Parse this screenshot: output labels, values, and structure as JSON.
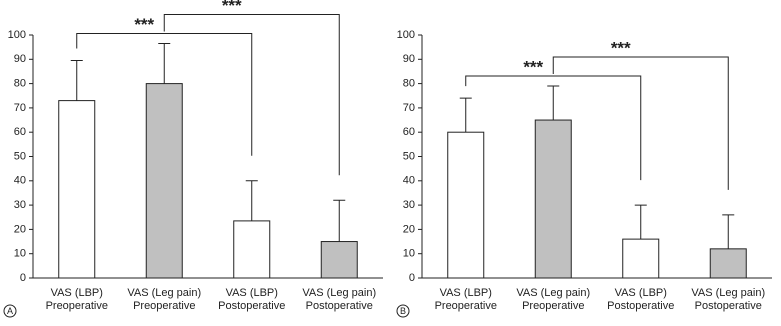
{
  "chart_data": [
    {
      "type": "bar",
      "panel": "A",
      "categories": [
        [
          "VAS (LBP)",
          "Preoperative"
        ],
        [
          "VAS (Leg pain)",
          "Preoperative"
        ],
        [
          "VAS (LBP)",
          "Postoperative"
        ],
        [
          "VAS (Leg pain)",
          "Postoperative"
        ]
      ],
      "values": [
        73,
        80,
        23.5,
        15
      ],
      "errors": [
        16.5,
        16.5,
        16.5,
        17
      ],
      "colors": [
        "#ffffff",
        "#c0c0c0",
        "#ffffff",
        "#c0c0c0"
      ],
      "ylim": [
        0,
        100
      ],
      "yticks": [
        0,
        10,
        20,
        30,
        40,
        50,
        60,
        70,
        80,
        90,
        100
      ],
      "brackets": [
        {
          "label": "***",
          "categories": [
            0,
            2
          ]
        },
        {
          "label": "***",
          "categories": [
            1,
            3
          ]
        }
      ]
    },
    {
      "type": "bar",
      "panel": "B",
      "categories": [
        [
          "VAS (LBP)",
          "Preoperative"
        ],
        [
          "VAS (Leg pain)",
          "Preoperative"
        ],
        [
          "VAS (LBP)",
          "Postoperative"
        ],
        [
          "VAS (Leg pain)",
          "Postoperative"
        ]
      ],
      "values": [
        60,
        65,
        16,
        12
      ],
      "errors": [
        14,
        14,
        14,
        14
      ],
      "colors": [
        "#ffffff",
        "#c0c0c0",
        "#ffffff",
        "#c0c0c0"
      ],
      "ylim": [
        0,
        100
      ],
      "yticks": [
        0,
        10,
        20,
        30,
        40,
        50,
        60,
        70,
        80,
        90,
        100
      ],
      "brackets": [
        {
          "label": "***",
          "categories": [
            0,
            2
          ]
        },
        {
          "label": "***",
          "categories": [
            1,
            3
          ]
        }
      ]
    }
  ]
}
